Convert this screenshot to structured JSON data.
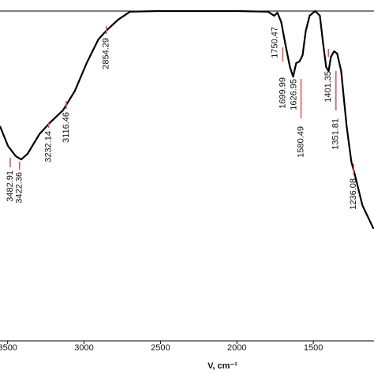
{
  "chart_data": {
    "type": "line",
    "x_label": "V, cm⁻¹",
    "x": [
      3550,
      3498,
      3447,
      3411,
      3370,
      3292,
      3220,
      3138,
      3060,
      2983,
      2906,
      2849,
      2777,
      2699,
      2519,
      2261,
      2003,
      1797,
      1756,
      1735,
      1710,
      1684,
      1653,
      1632,
      1612,
      1591,
      1570,
      1550,
      1524,
      1488,
      1457,
      1436,
      1416,
      1400,
      1385,
      1364,
      1344,
      1318,
      1282,
      1251,
      1230,
      1179,
      1106
    ],
    "series": [
      {
        "color": "#000000",
        "values": [
          65.1,
          59.1,
          56.0,
          55.0,
          56.7,
          62.7,
          66.3,
          69.9,
          75.8,
          84.2,
          91.4,
          94.3,
          97.4,
          99.8,
          100,
          100,
          100,
          99.8,
          98.6,
          99.5,
          96.7,
          90.2,
          83.0,
          80.1,
          84.2,
          84.7,
          86.6,
          93.8,
          98.6,
          100,
          98.6,
          90.2,
          83.0,
          81.8,
          86.1,
          87.8,
          87.1,
          81.8,
          65.1,
          54.3,
          50.7,
          41.1,
          34.0
        ]
      }
    ],
    "xlim": [
      3550,
      1103
    ],
    "ylim": [
      0,
      100
    ],
    "xticks": [
      3500,
      3000,
      2500,
      2000,
      1500
    ],
    "peaks": [
      3482.91,
      3422.36,
      3232.14,
      3116.46,
      2854.29,
      1750.47,
      1699.99,
      1626.95,
      1580.49,
      1401.35,
      1351.81,
      1236.08
    ],
    "peak_color": "#d9534f"
  }
}
